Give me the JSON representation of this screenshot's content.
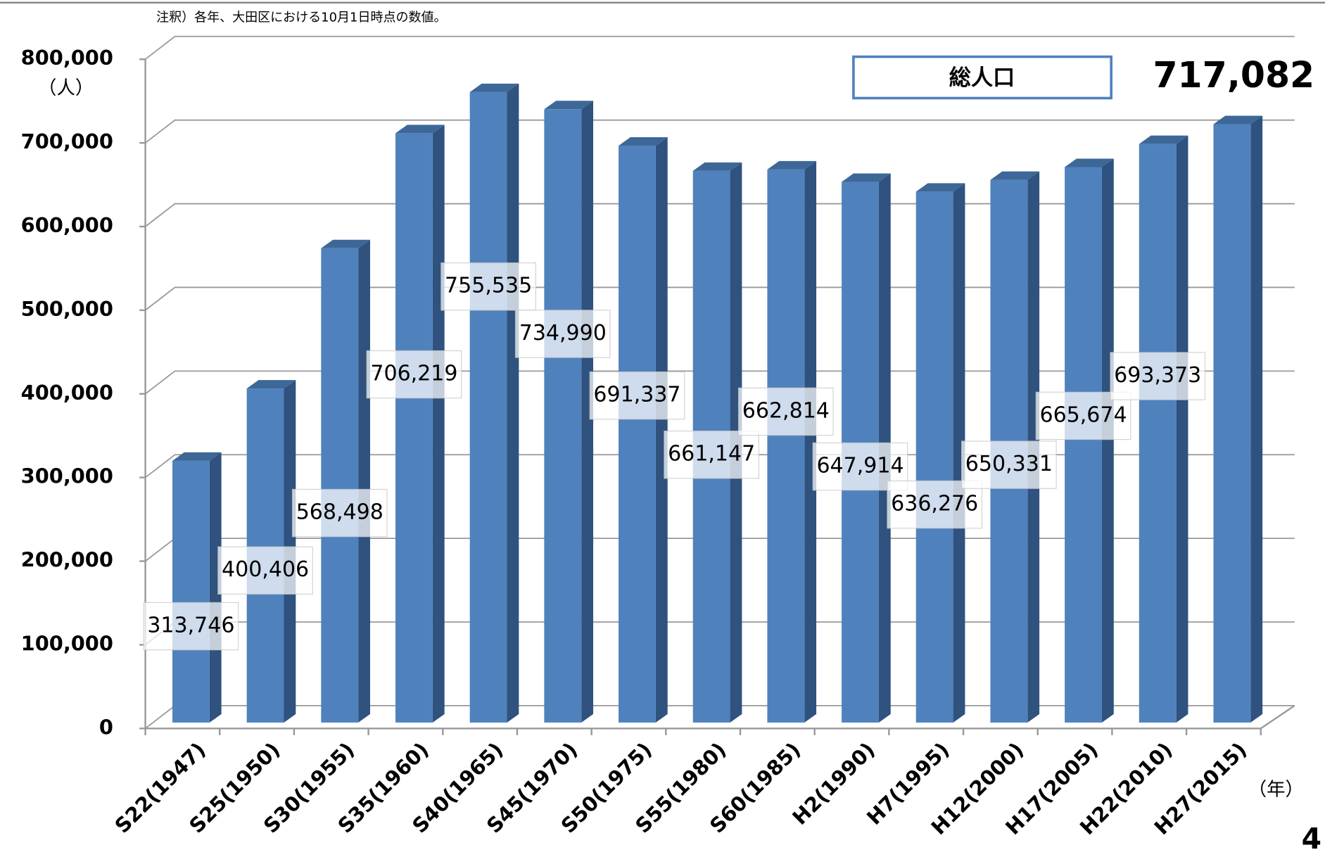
{
  "chart_data": {
    "type": "bar",
    "note": "注釈）各年、大田区における10月1日時点の数値。",
    "y_unit": "（人）",
    "x_unit": "（年）",
    "legend": "総人口",
    "page_number": "4",
    "color": "#4f81bd",
    "categories": [
      "S22(1947)",
      "S25(1950)",
      "S30(1955)",
      "S35(1960)",
      "S40(1965)",
      "S45(1970)",
      "S50(1975)",
      "S55(1980)",
      "S60(1985)",
      "H2(1990)",
      "H7(1995)",
      "H12(2000)",
      "H17(2005)",
      "H22(2010)",
      "H27(2015)"
    ],
    "values": [
      313746,
      400406,
      568498,
      706219,
      755535,
      734990,
      691337,
      661147,
      662814,
      647914,
      636276,
      650331,
      665674,
      693373,
      717082
    ],
    "value_labels": [
      "313,746",
      "400,406",
      "568,498",
      "706,219",
      "755,535",
      "734,990",
      "691,337",
      "661,147",
      "662,814",
      "647,914",
      "636,276",
      "650,331",
      "665,674",
      "693,373",
      "717,082"
    ],
    "ylim": [
      0,
      800000
    ],
    "yticks": [
      0,
      {
        "value": 100000,
        "label": "100,000"
      },
      {
        "value": 200000,
        "label": "200,000"
      },
      {
        "value": 300000,
        "label": "300,000"
      },
      {
        "value": 400000,
        "label": "400,000"
      },
      {
        "value": 500000,
        "label": "500,000"
      },
      {
        "value": 600000,
        "label": "600,000"
      },
      {
        "value": 700000,
        "label": "700,000"
      },
      {
        "value": 800000,
        "label": "800,000"
      }
    ],
    "grid": true
  }
}
